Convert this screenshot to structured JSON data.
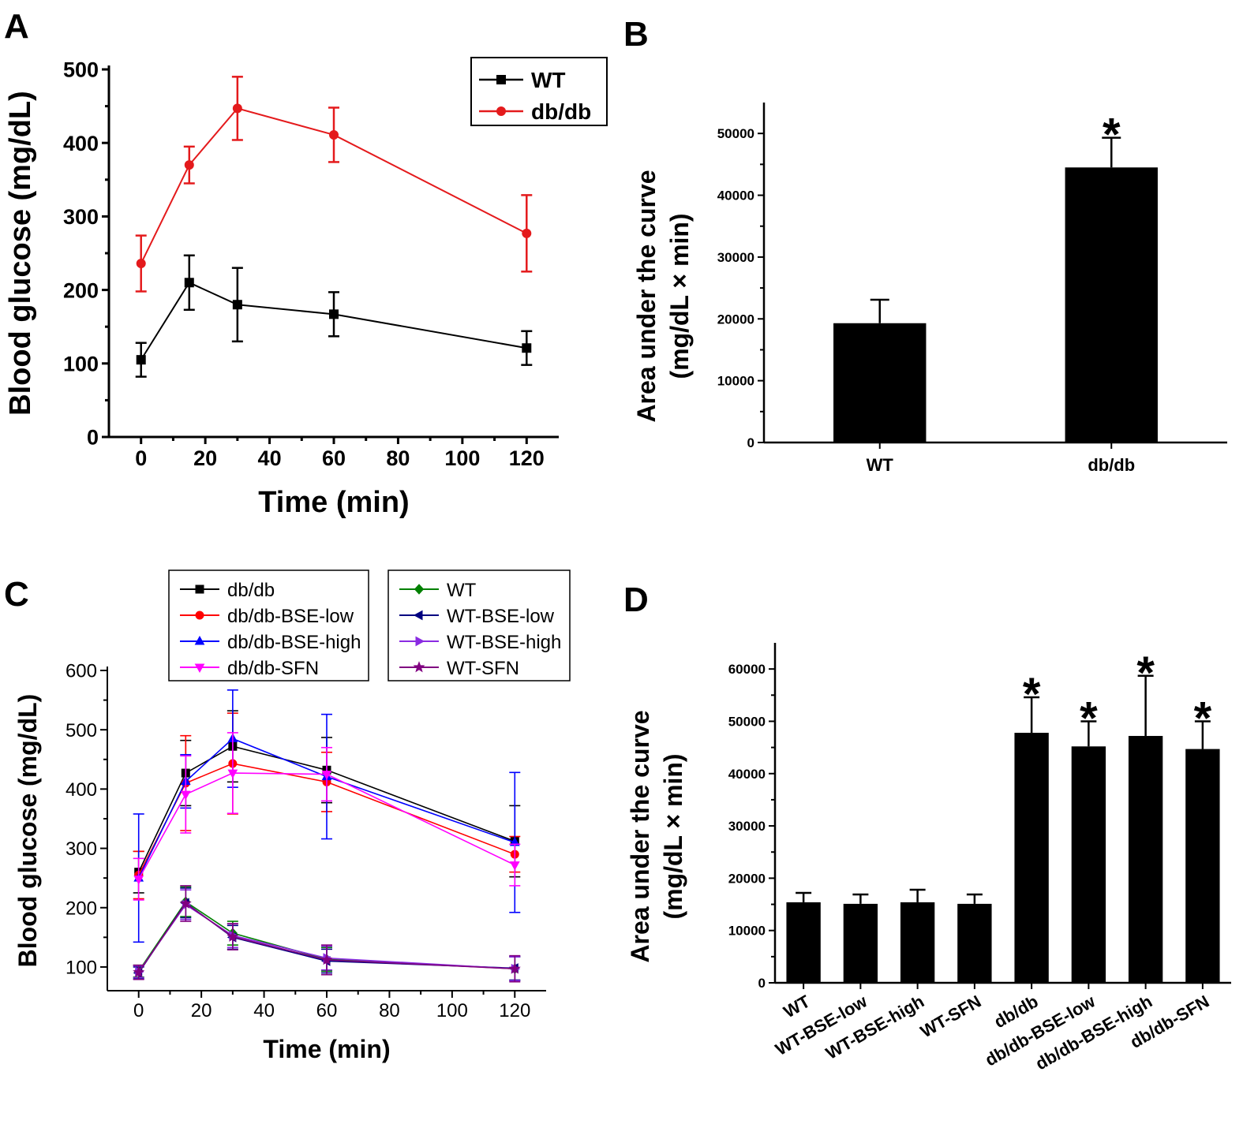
{
  "panels": {
    "A": {
      "letter": "A"
    },
    "B": {
      "letter": "B"
    },
    "C": {
      "letter": "C"
    },
    "D": {
      "letter": "D"
    }
  },
  "chart_data": [
    {
      "id": "A",
      "type": "line",
      "xlabel": "Time (min)",
      "ylabel": "Blood glucose (mg/dL)",
      "xlim": [
        -10,
        130
      ],
      "ylim": [
        0,
        500
      ],
      "xticks": [
        0,
        20,
        40,
        60,
        80,
        100,
        120
      ],
      "yticks": [
        0,
        100,
        200,
        300,
        400,
        500
      ],
      "x": [
        0,
        15,
        30,
        60,
        120
      ],
      "legend_position": "top-right",
      "series": [
        {
          "name": "WT",
          "color": "#000000",
          "marker": "square",
          "values": [
            105,
            210,
            180,
            167,
            121
          ],
          "errors": [
            23,
            37,
            50,
            30,
            23
          ]
        },
        {
          "name": "db/db",
          "color": "#e41a1c",
          "marker": "circle",
          "values": [
            236,
            370,
            447,
            411,
            277
          ],
          "errors": [
            38,
            25,
            43,
            37,
            52
          ]
        }
      ]
    },
    {
      "id": "B",
      "type": "bar",
      "xlabel": "",
      "ylabel": [
        "Area under the curve",
        "(mg/dL × min)"
      ],
      "categories": [
        "WT",
        "db/db"
      ],
      "values": [
        19300,
        44500
      ],
      "errors": [
        3800,
        4800
      ],
      "significance": [
        "",
        "*"
      ],
      "ylim": [
        0,
        55000
      ],
      "yticks": [
        0,
        10000,
        20000,
        30000,
        40000,
        50000
      ],
      "color": "#000000"
    },
    {
      "id": "C",
      "type": "line",
      "xlabel": "Time (min)",
      "ylabel": "Blood glucose (mg/dL)",
      "xlim": [
        -10,
        130
      ],
      "ylim": [
        60,
        600
      ],
      "xticks": [
        0,
        20,
        40,
        60,
        80,
        100,
        120
      ],
      "yticks": [
        100,
        200,
        300,
        400,
        500,
        600
      ],
      "x": [
        0,
        15,
        30,
        60,
        120
      ],
      "legend_position": "top",
      "series": [
        {
          "name": "db/db",
          "color": "#000000",
          "marker": "square",
          "values": [
            260,
            427,
            472,
            432,
            312
          ],
          "errors": [
            35,
            55,
            60,
            55,
            60
          ]
        },
        {
          "name": "db/db-BSE-low",
          "color": "#ff0000",
          "marker": "circle",
          "values": [
            255,
            410,
            443,
            412,
            290
          ],
          "errors": [
            40,
            80,
            85,
            50,
            30
          ]
        },
        {
          "name": "db/db-BSE-high",
          "color": "#0000ff",
          "marker": "triangle-up",
          "values": [
            250,
            413,
            485,
            421,
            310
          ],
          "errors": [
            108,
            45,
            82,
            105,
            118
          ]
        },
        {
          "name": "db/db-SFN",
          "color": "#ff00ff",
          "marker": "triangle-down",
          "values": [
            248,
            391,
            427,
            425,
            272
          ],
          "errors": [
            35,
            65,
            68,
            45,
            35
          ]
        },
        {
          "name": "WT",
          "color": "#008000",
          "marker": "diamond",
          "values": [
            93,
            210,
            157,
            113,
            97
          ],
          "errors": [
            10,
            25,
            20,
            20,
            20
          ]
        },
        {
          "name": "WT-BSE-low",
          "color": "#000080",
          "marker": "triangle-left",
          "values": [
            90,
            208,
            150,
            110,
            98
          ],
          "errors": [
            10,
            25,
            20,
            20,
            20
          ]
        },
        {
          "name": "WT-BSE-high",
          "color": "#8a2be2",
          "marker": "triangle-right",
          "values": [
            92,
            205,
            153,
            115,
            97
          ],
          "errors": [
            10,
            25,
            20,
            20,
            20
          ]
        },
        {
          "name": "WT-SFN",
          "color": "#800080",
          "marker": "star",
          "values": [
            91,
            207,
            151,
            112,
            97
          ],
          "errors": [
            12,
            30,
            22,
            25,
            22
          ]
        }
      ]
    },
    {
      "id": "D",
      "type": "bar",
      "xlabel": "",
      "ylabel": [
        "Area under the curve",
        "(mg/dL × min)"
      ],
      "categories": [
        "WT",
        "WT-BSE-low",
        "WT-BSE-high",
        "WT-SFN",
        "db/db",
        "db/db-BSE-low",
        "db/db-BSE-high",
        "db/db-SFN"
      ],
      "values": [
        15400,
        15100,
        15400,
        15100,
        47800,
        45200,
        47200,
        44700
      ],
      "errors": [
        1800,
        1800,
        2400,
        1800,
        6800,
        4800,
        11500,
        5300
      ],
      "significance": [
        "",
        "",
        "",
        "",
        "*",
        "*",
        "*",
        "*"
      ],
      "ylim": [
        0,
        65000
      ],
      "yticks": [
        0,
        10000,
        20000,
        30000,
        40000,
        50000,
        60000
      ],
      "color": "#000000"
    }
  ]
}
